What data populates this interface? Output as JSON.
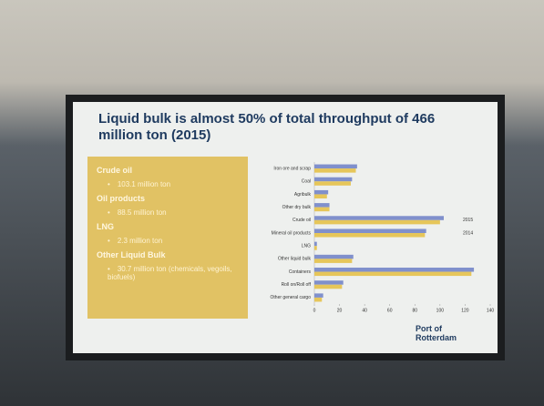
{
  "title": "Liquid bulk is almost 50% of total throughput of 466 million ton (2015)",
  "sidebar": [
    {
      "heading": "Crude oil",
      "detail": "103.1 million ton"
    },
    {
      "heading": "Oil products",
      "detail": "88.5 million ton"
    },
    {
      "heading": "LNG",
      "detail": "2.3 million ton"
    },
    {
      "heading": "Other Liquid Bulk",
      "detail": "30.7 million ton (chemicals, vegoils, biofuels)"
    }
  ],
  "logo": {
    "line1": "Port of",
    "line2": "Rotterdam"
  },
  "chart_data": {
    "type": "hbar",
    "categories": [
      "Iron ore and scrap",
      "Coal",
      "Agribulk",
      "Other dry bulk",
      "Crude oil",
      "Mineral oil products",
      "LNG",
      "Other liquid bulk",
      "Containers",
      "Roll on/Roll off",
      "Other general cargo"
    ],
    "series": [
      {
        "name": "2015",
        "color": "#8090cc",
        "values": [
          34,
          30,
          11,
          12,
          103,
          89,
          2,
          31,
          127,
          23,
          7
        ]
      },
      {
        "name": "2014",
        "color": "#e6c65a",
        "values": [
          33,
          29,
          10,
          12,
          100,
          88,
          2,
          30,
          125,
          22,
          6
        ]
      }
    ],
    "xlim": [
      0,
      140
    ],
    "xticks": [
      0,
      20,
      40,
      60,
      80,
      100,
      120,
      140
    ],
    "grid": false
  }
}
